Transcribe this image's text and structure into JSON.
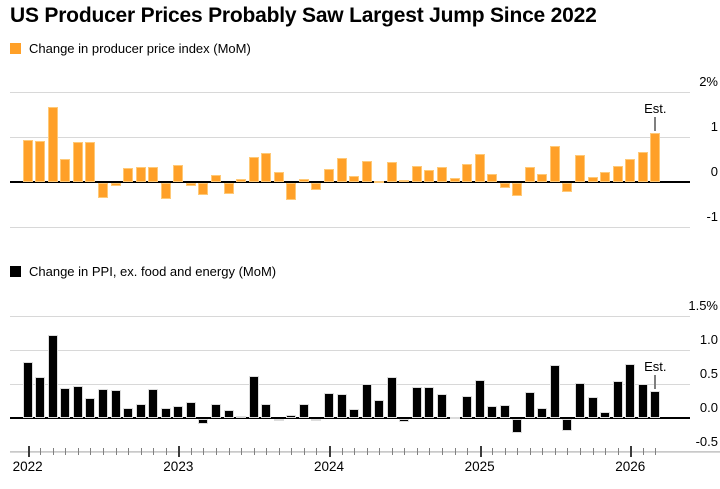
{
  "title": "US Producer Prices Probably Saw Largest Jump Since 2022",
  "colors": {
    "orange": "#ffa028",
    "orange_edge": "#ffc977",
    "black": "#000000",
    "black_edge": "#dcdcdc",
    "gridline": "#d8d8d8",
    "zero_line": "#000000",
    "est_pointer": "#7f7f7f",
    "month_tick": "#808080",
    "year_tick": "#3c3c3c",
    "axis_baseline": "#c9c9c9",
    "text": "#000000"
  },
  "x_axis": {
    "year_labels": [
      "2022",
      "2023",
      "2024",
      "2025",
      "2026"
    ],
    "months": [
      "2022-01",
      "2022-02",
      "2022-03",
      "2022-04",
      "2022-05",
      "2022-06",
      "2022-07",
      "2022-08",
      "2022-09",
      "2022-10",
      "2022-11",
      "2022-12",
      "2023-01",
      "2023-02",
      "2023-03",
      "2023-04",
      "2023-05",
      "2023-06",
      "2023-07",
      "2023-08",
      "2023-09",
      "2023-10",
      "2023-11",
      "2023-12",
      "2024-01",
      "2024-02",
      "2024-03",
      "2024-04",
      "2024-05",
      "2024-06",
      "2024-07",
      "2024-08",
      "2024-09",
      "2024-10",
      "2024-11",
      "2024-12",
      "2025-01",
      "2025-02",
      "2025-03",
      "2025-04",
      "2025-05",
      "2025-06",
      "2025-07",
      "2025-08",
      "2025-09",
      "2025-10",
      "2025-11",
      "2025-12",
      "2026-01",
      "2026-02",
      "2026-03"
    ]
  },
  "chart_data": [
    {
      "type": "bar",
      "legend": "Change in producer price index (MoM)",
      "series_color": "#ffa028",
      "edge_color": "#ffc977",
      "unit": "% month-over-month",
      "x": "x_axis.months (monthly, Jan 2022 - Mar 2026)",
      "values": [
        0.94,
        0.92,
        1.66,
        0.52,
        0.89,
        0.88,
        -0.33,
        -0.06,
        0.31,
        0.34,
        0.34,
        -0.35,
        0.37,
        -0.06,
        -0.26,
        0.15,
        -0.24,
        0.06,
        0.55,
        0.64,
        0.23,
        -0.37,
        0.07,
        -0.16,
        0.29,
        0.54,
        0.13,
        0.46,
        0.03,
        0.44,
        0.04,
        0.35,
        0.27,
        0.34,
        0.1,
        0.41,
        0.63,
        0.18,
        -0.11,
        -0.28,
        0.33,
        0.18,
        0.8,
        -0.2,
        0.6,
        0.12,
        0.23,
        0.36,
        0.51,
        0.66,
        1.08
      ],
      "ylim": [
        -1,
        2
      ],
      "yticks": [
        {
          "v": 2,
          "label": "2%"
        },
        {
          "v": 1,
          "label": "1"
        },
        {
          "v": 0,
          "label": "0"
        },
        {
          "v": -1,
          "label": "-1"
        }
      ],
      "grid": true,
      "est": {
        "label": "Est.",
        "index": 50
      }
    },
    {
      "type": "bar",
      "legend": "Change in PPI, ex. food and energy (MoM)",
      "series_color": "#000000",
      "edge_color": "#dcdcdc",
      "unit": "% month-over-month",
      "x": "x_axis.months (monthly, Jan 2022 - Mar 2026)",
      "values": [
        0.82,
        0.6,
        1.22,
        0.44,
        0.47,
        0.3,
        0.42,
        0.41,
        0.15,
        0.21,
        0.42,
        0.14,
        0.17,
        0.24,
        -0.07,
        0.21,
        0.12,
        0.03,
        0.62,
        0.2,
        -0.02,
        0.05,
        0.21,
        -0.03,
        0.37,
        0.36,
        0.13,
        0.5,
        0.27,
        0.61,
        -0.05,
        0.45,
        0.46,
        0.35,
        0.02,
        0.32,
        0.56,
        0.18,
        0.19,
        -0.2,
        0.38,
        0.14,
        0.78,
        -0.18,
        0.51,
        0.31,
        0.09,
        0.54,
        0.8,
        0.5,
        0.39
      ],
      "ylim": [
        -0.5,
        1.5
      ],
      "yticks": [
        {
          "v": 1.5,
          "label": "1.5%"
        },
        {
          "v": 1.0,
          "label": "1.0"
        },
        {
          "v": 0.5,
          "label": "0.5"
        },
        {
          "v": 0.0,
          "label": "0.0"
        },
        {
          "v": -0.5,
          "label": "-0.5",
          "full_width": true
        }
      ],
      "grid": true,
      "est": {
        "label": "Est.",
        "index": 50
      }
    }
  ]
}
